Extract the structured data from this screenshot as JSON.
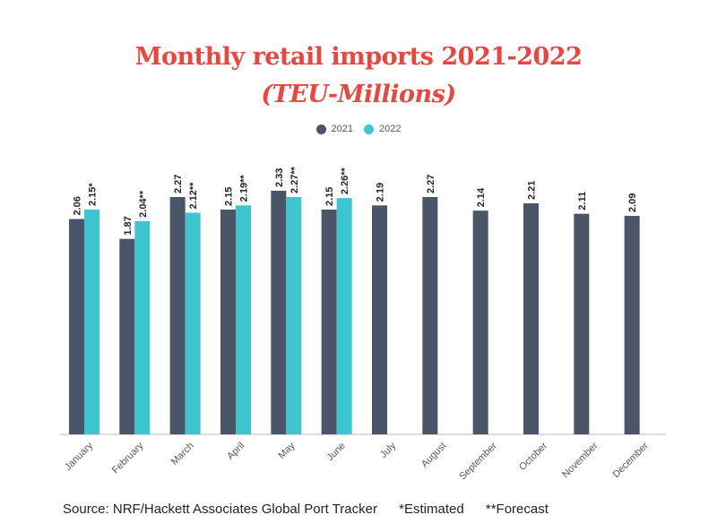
{
  "title": "Monthly retail imports 2021-2022",
  "subtitle": "(TEU-Millions)",
  "colors": {
    "title": "#e8463f",
    "series_2021": "#4a5568",
    "series_2022": "#3ec6cf"
  },
  "chart_data": {
    "type": "bar",
    "categories": [
      "January",
      "February",
      "March",
      "April",
      "May",
      "June",
      "July",
      "August",
      "September",
      "October",
      "November",
      "December"
    ],
    "series": [
      {
        "name": "2021",
        "color": "#4a5568",
        "values": [
          2.06,
          1.87,
          2.27,
          2.15,
          2.33,
          2.15,
          2.19,
          2.27,
          2.14,
          2.21,
          2.11,
          2.09
        ],
        "labels": [
          "2.06",
          "1.87",
          "2.27",
          "2.15",
          "2.33",
          "2.15",
          "2.19",
          "2.27",
          "2.14",
          "2.21",
          "2.11",
          "2.09"
        ]
      },
      {
        "name": "2022",
        "color": "#3ec6cf",
        "values": [
          2.15,
          2.04,
          2.12,
          2.19,
          2.27,
          2.26,
          null,
          null,
          null,
          null,
          null,
          null
        ],
        "labels": [
          "2.15*",
          "2.04**",
          "2.12**",
          "2.19**",
          "2.27**",
          "2.26**",
          "",
          "",
          "",
          "",
          "",
          ""
        ]
      }
    ],
    "ylim": [
      0,
      2.5
    ],
    "grid": false,
    "legend": "top-center"
  },
  "footer": {
    "source": "Source: NRF/Hackett Associates Global Port Tracker",
    "estimated": "*Estimated",
    "forecast": "**Forecast"
  }
}
